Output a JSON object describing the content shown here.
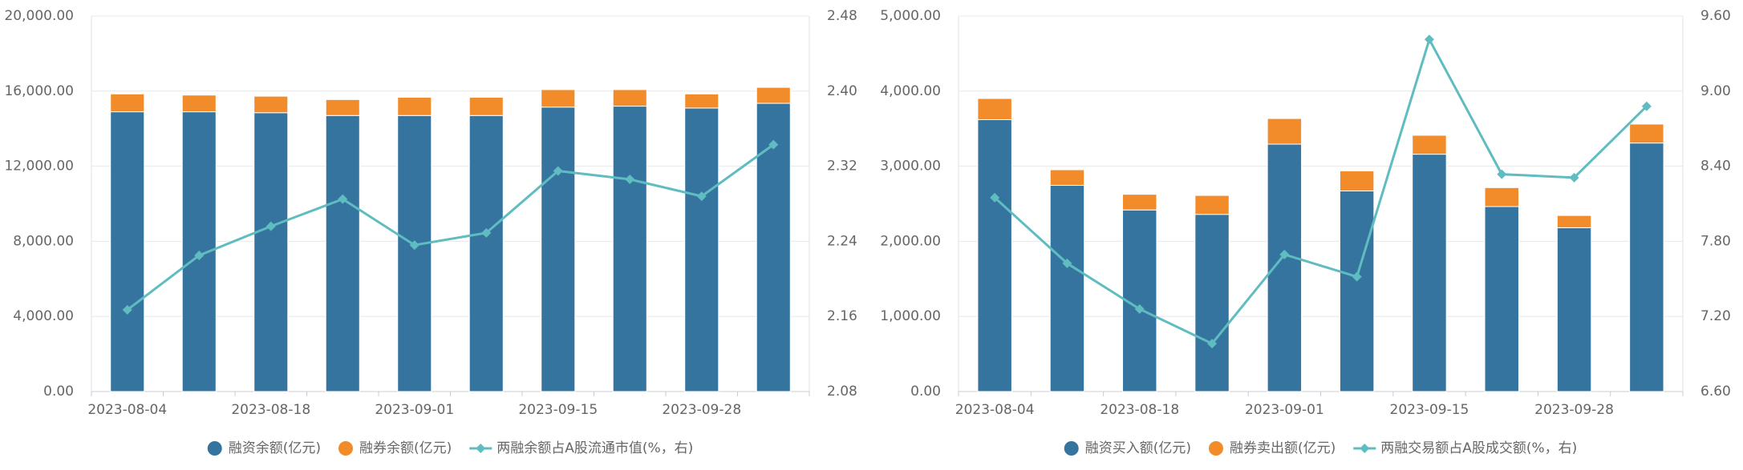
{
  "chart_data": [
    {
      "type": "bar",
      "stacked": true,
      "grid": true,
      "categories": [
        "2023-08-04",
        null,
        "2023-08-18",
        null,
        "2023-09-01",
        null,
        "2023-09-15",
        null,
        "2023-09-28",
        null
      ],
      "series": [
        {
          "name": "融资余额(亿元)",
          "color": "#3674a0",
          "values": [
            14900,
            14900,
            14850,
            14700,
            14700,
            14700,
            15150,
            15200,
            15100,
            15350
          ]
        },
        {
          "name": "融券余额(亿元)",
          "color": "#f28b2a",
          "values": [
            950,
            890,
            880,
            850,
            970,
            970,
            930,
            880,
            750,
            850
          ]
        },
        {
          "name": "两融余额占A股流通市值(%，右)",
          "color": "#5fbcc0",
          "type": "line",
          "axis": "y2",
          "values": [
            2.167,
            2.225,
            2.256,
            2.285,
            2.236,
            2.249,
            2.315,
            2.306,
            2.288,
            2.343
          ]
        }
      ],
      "ylim": [
        0,
        20000
      ],
      "yticks": [
        {
          "value": 0,
          "label": "0.00"
        },
        {
          "value": 4000,
          "label": "4,000.00"
        },
        {
          "value": 8000,
          "label": "8,000.00"
        },
        {
          "value": 12000,
          "label": "12,000.00"
        },
        {
          "value": 16000,
          "label": "16,000.00"
        },
        {
          "value": 20000,
          "label": "20,000.00"
        }
      ],
      "y2lim": [
        2.08,
        2.48
      ],
      "y2ticks": [
        2.08,
        2.16,
        2.24,
        2.32,
        {
          "value": 2.4,
          "label": "2.40"
        },
        2.48
      ],
      "legend": "bottom"
    },
    {
      "type": "bar",
      "stacked": true,
      "grid": true,
      "categories": [
        "2023-08-04",
        null,
        "2023-08-18",
        null,
        "2023-09-01",
        null,
        "2023-09-15",
        null,
        "2023-09-28",
        null
      ],
      "series": [
        {
          "name": "融资买入额(亿元)",
          "color": "#3674a0",
          "values": [
            3620,
            2745,
            2418,
            2359,
            3294,
            2671,
            3160,
            2463,
            2181,
            3309
          ]
        },
        {
          "name": "融券卖出额(亿元)",
          "color": "#f28b2a",
          "values": [
            282,
            208,
            208,
            252,
            341,
            267,
            252,
            252,
            163,
            252
          ]
        },
        {
          "name": "两融交易额占A股成交额(%，右)",
          "color": "#5fbcc0",
          "type": "line",
          "axis": "y2",
          "values": [
            8.149,
            7.624,
            7.259,
            6.983,
            7.695,
            7.517,
            9.413,
            8.336,
            8.309,
            8.879
          ]
        }
      ],
      "ylim": [
        0,
        5000
      ],
      "yticks": [
        {
          "value": 0,
          "label": "0.00"
        },
        {
          "value": 1000,
          "label": "1,000.00"
        },
        {
          "value": 2000,
          "label": "2,000.00"
        },
        {
          "value": 3000,
          "label": "3,000.00"
        },
        {
          "value": 4000,
          "label": "4,000.00"
        },
        {
          "value": 5000,
          "label": "5,000.00"
        }
      ],
      "y2lim": [
        6.6,
        9.6
      ],
      "y2ticks": [
        {
          "value": 6.6,
          "label": "6.60"
        },
        {
          "value": 7.2,
          "label": "7.20"
        },
        {
          "value": 7.8,
          "label": "7.80"
        },
        {
          "value": 8.4,
          "label": "8.40"
        },
        {
          "value": 9.0,
          "label": "9.00"
        },
        {
          "value": 9.6,
          "label": "9.60"
        }
      ],
      "legend": "bottom"
    }
  ]
}
